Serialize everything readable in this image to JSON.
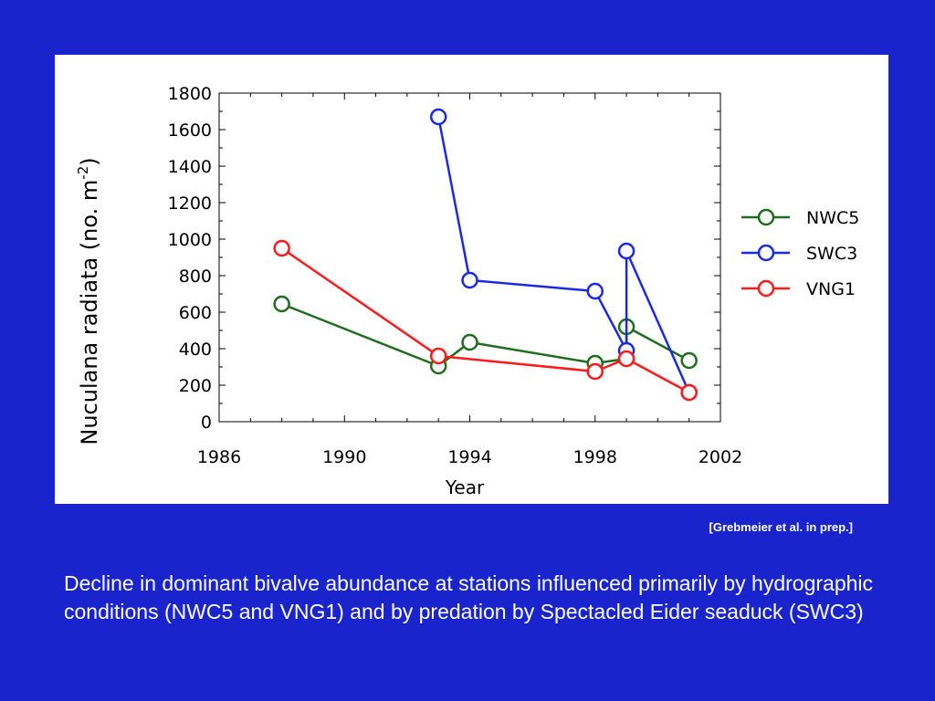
{
  "chart_data": {
    "type": "line",
    "xlabel": "Year",
    "ylabel_main": "Nuculana radiata (no. m",
    "ylabel_sup": "-2",
    "ylabel_close": ")",
    "xlim": [
      1986,
      2002
    ],
    "ylim": [
      0,
      1800
    ],
    "xticks": [
      1986,
      1990,
      1994,
      1998,
      2002
    ],
    "yticks": [
      0,
      200,
      400,
      600,
      800,
      1000,
      1200,
      1400,
      1600,
      1800
    ],
    "grid": false,
    "legend_position": "right",
    "series": [
      {
        "name": "NWC5",
        "color": "#1f6e1f",
        "points": [
          [
            1988,
            645
          ],
          [
            1993,
            305
          ],
          [
            1994,
            435
          ],
          [
            1998,
            320
          ],
          [
            1999,
            345
          ],
          [
            1999,
            520
          ],
          [
            2001,
            335
          ]
        ]
      },
      {
        "name": "SWC3",
        "color": "#1a2ae0",
        "points": [
          [
            1993,
            1670
          ],
          [
            1994,
            775
          ],
          [
            1998,
            715
          ],
          [
            1999,
            390
          ],
          [
            1999,
            935
          ],
          [
            2001,
            160
          ]
        ]
      },
      {
        "name": "VNG1",
        "color": "#ff1a1a",
        "points": [
          [
            1988,
            950
          ],
          [
            1993,
            360
          ],
          [
            1998,
            275
          ],
          [
            1999,
            345
          ],
          [
            2001,
            160
          ]
        ]
      }
    ]
  },
  "citation": "[Grebmeier et al. in prep.]",
  "caption": "Decline in dominant bivalve abundance at stations influenced primarily by hydrographic conditions (NWC5 and VNG1) and by predation by Spectacled Eider seaduck (SWC3)"
}
